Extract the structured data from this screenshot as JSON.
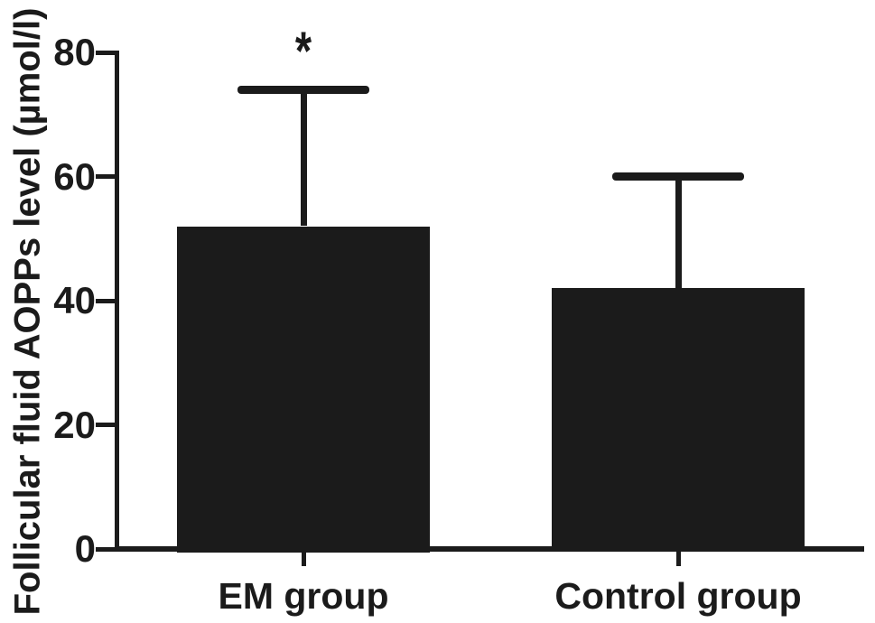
{
  "figure": {
    "background": "#ffffff",
    "ink_color": "#1b1b1b"
  },
  "chart_data": {
    "type": "bar",
    "title": "",
    "xlabel": "",
    "ylabel": "Follicular fluid AOPPs level (µmol/l)",
    "categories": [
      "EM group",
      "Control group"
    ],
    "values": [
      52,
      42
    ],
    "errors_plus": [
      22,
      18
    ],
    "error_bar_tops": [
      74,
      60
    ],
    "yticks": [
      0,
      20,
      40,
      60,
      80
    ],
    "ylim": [
      0,
      80
    ],
    "bar_color": "#1b1b1b",
    "grid": false,
    "legend": "none",
    "error_bars": "upper whisker with cap",
    "annotations": [
      {
        "text": "*",
        "category": "EM group",
        "meaning": "statistically significant vs control"
      }
    ]
  }
}
